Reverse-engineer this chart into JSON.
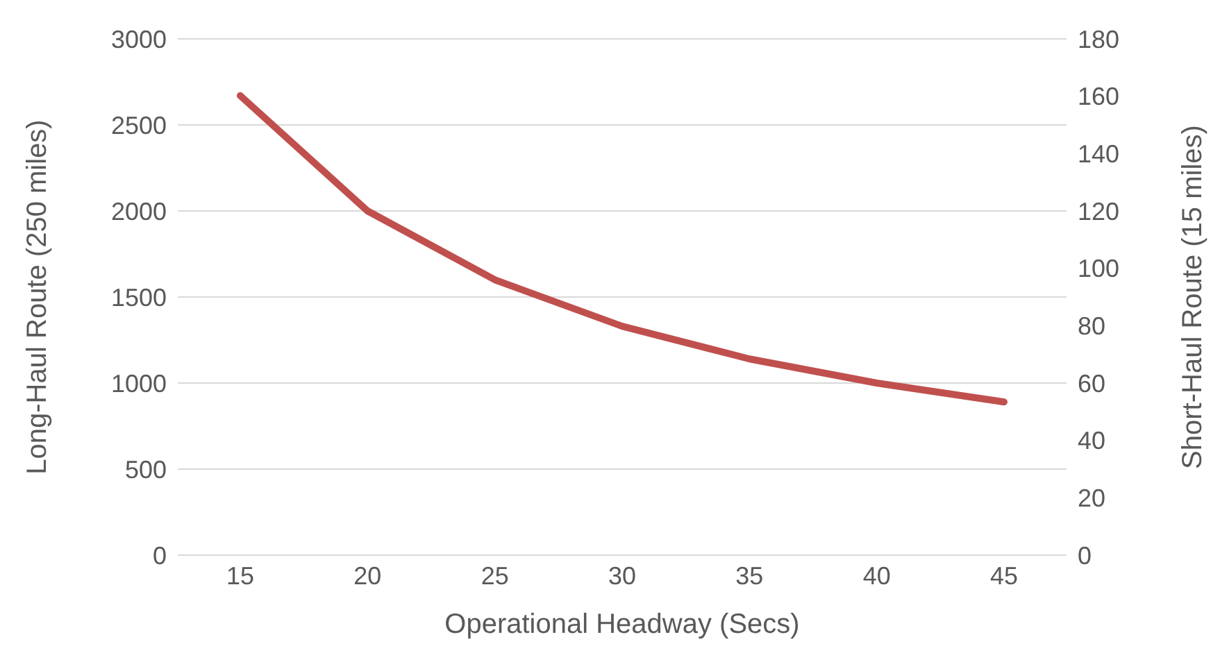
{
  "chart_data": {
    "type": "line",
    "xlabel": "Operational Headway (Secs)",
    "ylabel": "Long-Haul Route (250 miles)",
    "y2label": "Short-Haul Route (15 miles)",
    "categories": [
      "15",
      "20",
      "25",
      "30",
      "35",
      "40",
      "45"
    ],
    "series": [
      {
        "color": "#c0504d",
        "values": [
          2670,
          2000,
          1600,
          1330,
          1140,
          1000,
          890
        ]
      }
    ],
    "ylim": [
      0,
      3000
    ],
    "yticks": [
      0,
      500,
      1000,
      1500,
      2000,
      2500,
      3000
    ],
    "y2lim": [
      0,
      180
    ],
    "y2ticks": [
      0,
      20,
      40,
      60,
      80,
      100,
      120,
      140,
      160,
      180
    ],
    "grid": "y",
    "legend": false,
    "marker": "none",
    "line_style": "solid"
  }
}
